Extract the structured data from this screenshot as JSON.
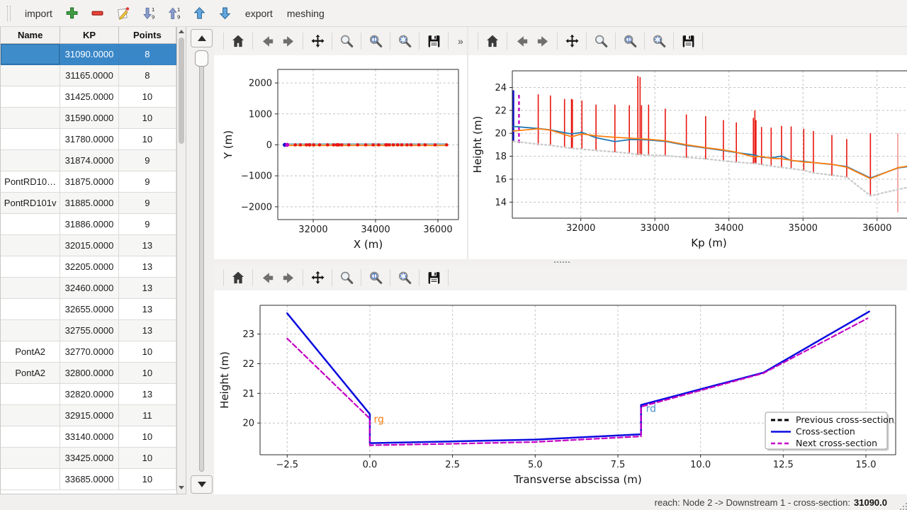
{
  "main_toolbar": {
    "import_label": "import",
    "export_label": "export",
    "meshing_label": "meshing",
    "icon_buttons": [
      "add",
      "remove",
      "edit",
      "sort-descending",
      "sort-ascending",
      "move-up",
      "move-down"
    ]
  },
  "cross_section_table": {
    "columns": [
      "Name",
      "KP",
      "Points"
    ],
    "selected_index": 0,
    "rows": [
      {
        "name": "",
        "kp": "31090.0000",
        "points": "8"
      },
      {
        "name": "",
        "kp": "31165.0000",
        "points": "8"
      },
      {
        "name": "",
        "kp": "31425.0000",
        "points": "10"
      },
      {
        "name": "",
        "kp": "31590.0000",
        "points": "10"
      },
      {
        "name": "",
        "kp": "31780.0000",
        "points": "10"
      },
      {
        "name": "",
        "kp": "31874.0000",
        "points": "9"
      },
      {
        "name": "PontRD10…",
        "kp": "31875.0000",
        "points": "9"
      },
      {
        "name": "PontRD101v",
        "kp": "31885.0000",
        "points": "9"
      },
      {
        "name": "",
        "kp": "31886.0000",
        "points": "9"
      },
      {
        "name": "",
        "kp": "32015.0000",
        "points": "13"
      },
      {
        "name": "",
        "kp": "32205.0000",
        "points": "13"
      },
      {
        "name": "",
        "kp": "32460.0000",
        "points": "13"
      },
      {
        "name": "",
        "kp": "32655.0000",
        "points": "13"
      },
      {
        "name": "",
        "kp": "32755.0000",
        "points": "13"
      },
      {
        "name": "PontA2",
        "kp": "32770.0000",
        "points": "10"
      },
      {
        "name": "PontA2",
        "kp": "32800.0000",
        "points": "10"
      },
      {
        "name": "",
        "kp": "32820.0000",
        "points": "13"
      },
      {
        "name": "",
        "kp": "32915.0000",
        "points": "11"
      },
      {
        "name": "",
        "kp": "33140.0000",
        "points": "10"
      },
      {
        "name": "",
        "kp": "33425.0000",
        "points": "10"
      },
      {
        "name": "",
        "kp": "33685.0000",
        "points": "10"
      }
    ]
  },
  "nav_toolbar_buttons": [
    "home",
    "back",
    "forward",
    "pan",
    "zoom",
    "zoom-one",
    "zoom-region",
    "save"
  ],
  "nav_overflow_label": "»",
  "status_bar": {
    "reach_label": "reach: Node 2 -> Downstream 1 - cross-section:",
    "value": "31090.0"
  },
  "colors": {
    "selection": "#3a87c8",
    "cross_section_line": "#0a0ae0",
    "next_section_line": "#c400c4",
    "previous_section_line": "#000000",
    "bank_left": "#1f77b4",
    "bank_right": "#ff7f0e",
    "river_bottom": "#cccccc",
    "section_marker_red": "#e8150e"
  },
  "chart_data": [
    {
      "id": "plan-view",
      "type": "line",
      "title": "",
      "xlabel": "X (m)",
      "ylabel": "Y (m)",
      "xlim": [
        30864,
        36659
      ],
      "ylim": [
        -2414,
        2437
      ],
      "grid": true,
      "xticks": [
        32000,
        34000,
        36000
      ],
      "xtick_labels": [
        "32000",
        "34000",
        "36000"
      ],
      "yticks": [
        -2000,
        -1000,
        0,
        1000,
        2000
      ],
      "ytick_labels": [
        "−2000",
        "−1000",
        "0",
        "1000",
        "2000"
      ],
      "axis_path": {
        "x": [
          31090,
          36280
        ],
        "y": [
          0,
          0
        ],
        "upper_color": "#8fb3cf",
        "lower_color": "#ff7f0e"
      },
      "markers": {
        "y": 0,
        "color": "#e8150e",
        "x": [
          31090,
          31165,
          31425,
          31590,
          31780,
          31874,
          31875,
          31885,
          31886,
          32015,
          32205,
          32460,
          32655,
          32755,
          32770,
          32800,
          32820,
          32915,
          33140,
          33425,
          33685,
          33925,
          34100,
          34330,
          34350,
          34360,
          34440,
          34570,
          34710,
          34840,
          35010,
          35140,
          35390,
          35590,
          35910,
          36280
        ]
      },
      "special_markers": [
        {
          "x": 31090,
          "y": 0,
          "color": "#1414cc",
          "meaning": "selected cross-section"
        },
        {
          "x": 31165,
          "y": 0,
          "color": "#c400c4",
          "meaning": "next cross-section"
        }
      ]
    },
    {
      "id": "longitudinal-profile",
      "type": "line",
      "title": "",
      "xlabel": "Kp (m)",
      "ylabel": "Height (m)",
      "xlim": [
        31075,
        36385
      ],
      "ylim": [
        12.6,
        25.45
      ],
      "grid": true,
      "xticks": [
        32000,
        33000,
        34000,
        35000,
        36000
      ],
      "xtick_labels": [
        "32000",
        "33000",
        "34000",
        "35000",
        "36000"
      ],
      "yticks": [
        14,
        16,
        18,
        20,
        22,
        24
      ],
      "ytick_labels": [
        "14",
        "16",
        "18",
        "20",
        "22",
        "24"
      ],
      "series": [
        {
          "name": "left-bank",
          "color": "#1f77b4",
          "style": "solid",
          "width": 1.8,
          "x": [
            31090,
            31425,
            31590,
            31780,
            31874,
            32015,
            32205,
            32460,
            32655,
            32820,
            32915,
            33140,
            33425,
            33685,
            33925,
            34100,
            34330,
            34440,
            34570,
            34710,
            34840,
            35010,
            35140,
            35390,
            35590,
            35910,
            36280,
            36420
          ],
          "y": [
            20.6,
            20.42,
            20.3,
            20.05,
            19.95,
            20.08,
            19.62,
            19.28,
            19.45,
            19.45,
            19.42,
            19.3,
            18.95,
            18.72,
            18.5,
            18.32,
            18.12,
            17.92,
            17.85,
            18.02,
            17.62,
            17.55,
            17.45,
            17.28,
            17.1,
            16.1,
            16.98,
            17.1
          ]
        },
        {
          "name": "right-bank",
          "color": "#ff7f0e",
          "style": "solid",
          "width": 1.8,
          "x": [
            31090,
            31425,
            31590,
            31780,
            31874,
            32015,
            32205,
            32460,
            32655,
            32820,
            32915,
            33140,
            33425,
            33685,
            33925,
            34100,
            34330,
            34440,
            34570,
            34710,
            34840,
            35010,
            35140,
            35390,
            35590,
            35910,
            36280,
            36420
          ],
          "y": [
            20.2,
            20.4,
            20.28,
            19.9,
            19.7,
            19.95,
            19.78,
            19.65,
            19.58,
            19.52,
            19.48,
            19.35,
            19.0,
            18.75,
            18.55,
            18.35,
            17.95,
            17.98,
            17.82,
            17.78,
            17.65,
            17.5,
            17.45,
            17.3,
            17.05,
            16.05,
            17.0,
            17.15
          ]
        },
        {
          "name": "river-bottom",
          "color": "#cccccc",
          "style": "dotted",
          "width": 2.4,
          "x": [
            31090,
            31425,
            31590,
            31780,
            31874,
            32015,
            32205,
            32460,
            32655,
            32820,
            32915,
            33140,
            33425,
            33685,
            33925,
            34100,
            34330,
            34440,
            34570,
            34710,
            34840,
            35010,
            35140,
            35390,
            35590,
            35910,
            36280,
            36420
          ],
          "y": [
            19.3,
            19.05,
            18.95,
            18.78,
            18.7,
            18.62,
            18.5,
            18.38,
            18.25,
            18.12,
            18.1,
            18.05,
            17.9,
            17.78,
            17.6,
            17.48,
            17.38,
            17.28,
            17.15,
            17.02,
            16.92,
            16.78,
            16.55,
            16.35,
            16.18,
            14.55,
            15.1,
            15.3
          ]
        }
      ],
      "section_lines": [
        {
          "x": 31425,
          "y0": 18.95,
          "y1": 23.4
        },
        {
          "x": 31590,
          "y0": 18.9,
          "y1": 23.3
        },
        {
          "x": 31780,
          "y0": 18.75,
          "y1": 23.0
        },
        {
          "x": 31874,
          "y0": 18.7,
          "y1": 23.0
        },
        {
          "x": 31886,
          "y0": 18.68,
          "y1": 22.95
        },
        {
          "x": 32015,
          "y0": 18.6,
          "y1": 22.85
        },
        {
          "x": 32205,
          "y0": 18.5,
          "y1": 22.5
        },
        {
          "x": 32460,
          "y0": 18.35,
          "y1": 22.5
        },
        {
          "x": 32655,
          "y0": 18.25,
          "y1": 22.45
        },
        {
          "x": 32770,
          "y0": 18.1,
          "y1": 25.0
        },
        {
          "x": 32800,
          "y0": 18.1,
          "y1": 24.9
        },
        {
          "x": 32820,
          "y0": 18.1,
          "y1": 22.45
        },
        {
          "x": 32915,
          "y0": 18.05,
          "y1": 22.5
        },
        {
          "x": 33140,
          "y0": 18.0,
          "y1": 22.15
        },
        {
          "x": 33425,
          "y0": 17.85,
          "y1": 21.65
        },
        {
          "x": 33685,
          "y0": 17.75,
          "y1": 21.5
        },
        {
          "x": 33925,
          "y0": 17.6,
          "y1": 21.15
        },
        {
          "x": 34100,
          "y0": 17.45,
          "y1": 20.95
        },
        {
          "x": 34330,
          "y0": 17.35,
          "y1": 21.35
        },
        {
          "x": 34350,
          "y0": 17.3,
          "y1": 22.0
        },
        {
          "x": 34365,
          "y0": 17.3,
          "y1": 21.15
        },
        {
          "x": 34440,
          "y0": 17.25,
          "y1": 20.55
        },
        {
          "x": 34570,
          "y0": 17.1,
          "y1": 20.5
        },
        {
          "x": 34710,
          "y0": 17.0,
          "y1": 20.65
        },
        {
          "x": 34840,
          "y0": 16.9,
          "y1": 20.6
        },
        {
          "x": 35010,
          "y0": 16.75,
          "y1": 20.4
        },
        {
          "x": 35140,
          "y0": 16.5,
          "y1": 20.2
        },
        {
          "x": 35390,
          "y0": 16.3,
          "y1": 19.85
        },
        {
          "x": 35590,
          "y0": 16.15,
          "y1": 19.5
        },
        {
          "x": 35910,
          "y0": 14.6,
          "y1": 20.0
        },
        {
          "x": 36280,
          "y0": 13.1,
          "y1": 20.0,
          "opacity": 0.45
        }
      ],
      "selected_line": {
        "x": 31090,
        "y0": 19.25,
        "y1": 23.75,
        "color": "#1414cc",
        "style": "solid"
      },
      "next_line": {
        "x": 31165,
        "y0": 19.15,
        "y1": 23.4,
        "color": "#c400c4",
        "style": "dashed"
      }
    },
    {
      "id": "cross-section",
      "type": "line",
      "title": "",
      "xlabel": "Transverse abscissa (m)",
      "ylabel": "Height (m)",
      "xlim": [
        -3.32,
        15.9
      ],
      "ylim": [
        18.93,
        23.97
      ],
      "grid": true,
      "xticks": [
        -2.5,
        0,
        2.5,
        5,
        7.5,
        10,
        12.5,
        15
      ],
      "xtick_labels": [
        "−2.5",
        "0.0",
        "2.5",
        "5.0",
        "7.5",
        "10.0",
        "12.5",
        "15.0"
      ],
      "yticks": [
        20,
        21,
        22,
        23
      ],
      "ytick_labels": [
        "20",
        "21",
        "22",
        "23"
      ],
      "series": [
        {
          "name": "Previous cross-section",
          "color": "#000000",
          "style": "dashed",
          "width": 2.6,
          "x": [],
          "y": []
        },
        {
          "name": "Cross-section",
          "color": "#0a0ae0",
          "style": "solid",
          "width": 2.5,
          "x": [
            -2.5,
            0,
            0,
            2.5,
            5,
            8.2,
            8.2,
            11.9,
            15.1
          ],
          "y": [
            23.7,
            20.3,
            19.32,
            19.38,
            19.44,
            19.62,
            20.61,
            21.7,
            23.76
          ]
        },
        {
          "name": "Next cross-section",
          "color": "#c400c4",
          "style": "dashed",
          "width": 2.2,
          "x": [
            -2.5,
            0,
            0,
            2.5,
            5,
            8.2,
            8.2,
            11.9,
            15.05
          ],
          "y": [
            22.85,
            20.15,
            19.25,
            19.3,
            19.36,
            19.55,
            20.55,
            21.68,
            23.53
          ]
        }
      ],
      "annotations": [
        {
          "text": "rg",
          "x": 0.12,
          "y": 20.02,
          "color": "#ff7f0e"
        },
        {
          "text": "rd",
          "x": 8.35,
          "y": 20.38,
          "color": "#4a90c8"
        }
      ],
      "legend": {
        "position": "lower-right",
        "entries": [
          "Previous cross-section",
          "Cross-section",
          "Next cross-section"
        ]
      }
    }
  ]
}
